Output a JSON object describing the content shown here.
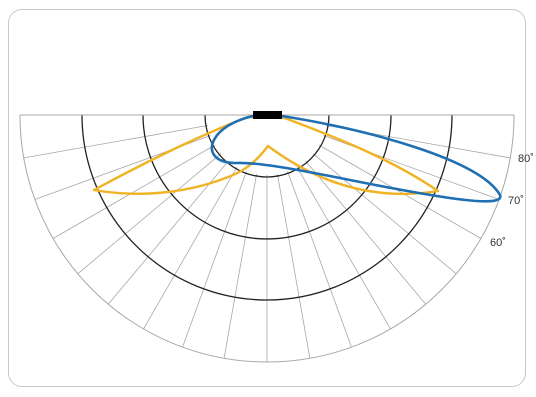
{
  "diagram": {
    "type": "polar-light-distribution",
    "angle_labels": [
      "80˚",
      "70˚",
      "60˚"
    ],
    "curve_colors": {
      "blue": "#1f6fb3",
      "amber": "#f0b323"
    },
    "lamp_color": "#000000",
    "grid_color": "#a8a8a8",
    "ring_color": "#222222"
  }
}
